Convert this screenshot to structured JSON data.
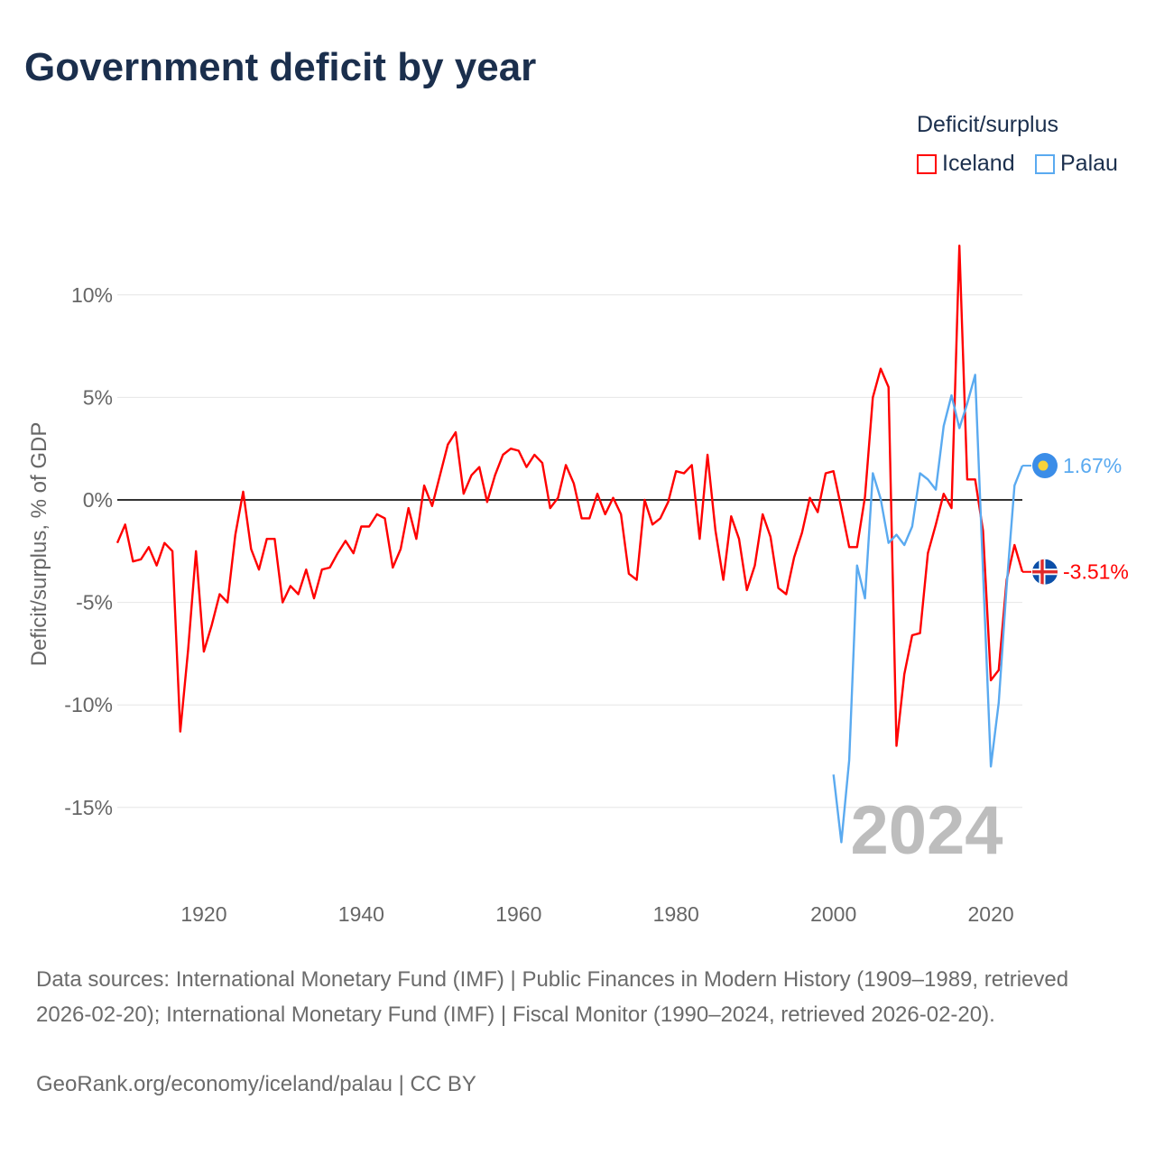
{
  "title": "Government deficit by year",
  "legend": {
    "title": "Deficit/surplus",
    "items": [
      {
        "name": "Iceland",
        "color": "#ff0000"
      },
      {
        "name": "Palau",
        "color": "#5aaaf0"
      }
    ]
  },
  "year_watermark": "2024",
  "footer": {
    "sources": "Data sources: International Monetary Fund (IMF) | Public Finances in Modern History (1909–1989, retrieved 2026-02-20); International Monetary Fund (IMF) | Fiscal Monitor (1990–2024, retrieved 2026-02-20).",
    "credit": "GeoRank.org/economy/iceland/palau | CC BY"
  },
  "chart_data": {
    "type": "line",
    "ylabel": "Deficit/surplus, % of GDP",
    "xlabel": "",
    "xlim": [
      1909,
      2024
    ],
    "ylim": [
      -17.5,
      12.5
    ],
    "xticks": [
      1920,
      1940,
      1960,
      1980,
      2000,
      2020
    ],
    "yticks": [
      10,
      5,
      0,
      -5,
      -10,
      -15
    ],
    "ytick_labels": [
      "10%",
      "5%",
      "0%",
      "-5%",
      "-10%",
      "-15%"
    ],
    "grid": true,
    "series": [
      {
        "name": "Iceland",
        "color": "#ff0000",
        "end_label": "-3.51%",
        "start_year": 1909,
        "values": [
          -2.1,
          -1.2,
          -3.0,
          -2.9,
          -2.3,
          -3.2,
          -2.1,
          -2.5,
          -11.3,
          -7.3,
          -2.5,
          -7.4,
          -6.1,
          -4.6,
          -5.0,
          -1.7,
          0.4,
          -2.4,
          -3.4,
          -1.9,
          -1.9,
          -5.0,
          -4.2,
          -4.6,
          -3.4,
          -4.8,
          -3.4,
          -3.3,
          -2.6,
          -2.0,
          -2.6,
          -1.3,
          -1.3,
          -0.7,
          -0.9,
          -3.3,
          -2.4,
          -0.4,
          -1.9,
          0.7,
          -0.3,
          1.2,
          2.7,
          3.3,
          0.3,
          1.2,
          1.6,
          -0.1,
          1.2,
          2.2,
          2.5,
          2.4,
          1.6,
          2.2,
          1.8,
          -0.4,
          0.1,
          1.7,
          0.8,
          -0.9,
          -0.9,
          0.3,
          -0.7,
          0.1,
          -0.7,
          -3.6,
          -3.9,
          0.0,
          -1.2,
          -0.9,
          -0.1,
          1.4,
          1.3,
          1.7,
          -1.9,
          2.2,
          -1.5,
          -3.9,
          -0.8,
          -1.9,
          -4.4,
          -3.2,
          -0.7,
          -1.8,
          -4.3,
          -4.6,
          -2.8,
          -1.6,
          0.1,
          -0.6,
          1.3,
          1.4,
          -0.4,
          -2.3,
          -2.3,
          0.15,
          5.0,
          6.4,
          5.5,
          -12.0,
          -8.5,
          -6.6,
          -6.5,
          -2.6,
          -1.2,
          0.3,
          -0.4,
          12.4,
          1.0,
          1.0,
          -1.5,
          -8.8,
          -8.3,
          -3.9,
          -2.2,
          -3.51
        ]
      },
      {
        "name": "Palau",
        "color": "#5aaaf0",
        "end_label": "1.67%",
        "start_year": 2000,
        "values": [
          -13.4,
          -16.7,
          -12.7,
          -3.2,
          -4.8,
          1.3,
          0.05,
          -2.1,
          -1.7,
          -2.2,
          -1.3,
          1.3,
          1.0,
          0.5,
          3.6,
          5.1,
          3.5,
          4.7,
          6.1,
          -3.5,
          -13.0,
          -9.9,
          -4.2,
          0.7,
          1.67
        ]
      }
    ]
  }
}
